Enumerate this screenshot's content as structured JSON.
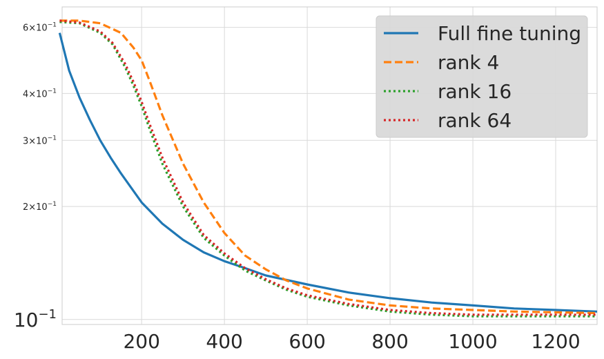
{
  "chart_data": {
    "type": "line",
    "title": "",
    "xlabel": "",
    "ylabel": "",
    "xlim": [
      8,
      1300
    ],
    "ylim": [
      0.097,
      0.68
    ],
    "yscale": "log",
    "grid": true,
    "legend_position": "top-right",
    "x_ticks": [
      200,
      400,
      600,
      800,
      1000,
      1200
    ],
    "x_tick_labels": [
      "200",
      "400",
      "600",
      "800",
      "1000",
      "1200"
    ],
    "y_ticks": [
      {
        "value": 0.6,
        "mantissa": "6×10",
        "exp": "−1",
        "size": "small"
      },
      {
        "value": 0.4,
        "mantissa": "4×10",
        "exp": "−1",
        "size": "small"
      },
      {
        "value": 0.3,
        "mantissa": "3×10",
        "exp": "−1",
        "size": "small"
      },
      {
        "value": 0.2,
        "mantissa": "2×10",
        "exp": "−1",
        "size": "small"
      },
      {
        "value": 0.1,
        "mantissa": "10",
        "exp": "−1",
        "size": "big"
      }
    ],
    "series": [
      {
        "name": "Full fine tuning",
        "color": "#1f77b4",
        "style": "solid",
        "x": [
          2,
          25,
          50,
          75,
          100,
          125,
          150,
          200,
          250,
          300,
          350,
          400,
          450,
          500,
          600,
          700,
          800,
          900,
          1000,
          1100,
          1200,
          1300
        ],
        "y": [
          0.58,
          0.46,
          0.39,
          0.34,
          0.3,
          0.27,
          0.245,
          0.205,
          0.18,
          0.163,
          0.151,
          0.143,
          0.137,
          0.131,
          0.124,
          0.118,
          0.114,
          0.111,
          0.109,
          0.107,
          0.106,
          0.105
        ]
      },
      {
        "name": "rank 4",
        "color": "#ff7f0e",
        "style": "dashed",
        "x": [
          2,
          50,
          100,
          150,
          180,
          200,
          220,
          250,
          300,
          350,
          400,
          450,
          500,
          550,
          600,
          700,
          800,
          900,
          1000,
          1100,
          1200,
          1300
        ],
        "y": [
          0.625,
          0.625,
          0.615,
          0.58,
          0.53,
          0.49,
          0.43,
          0.35,
          0.26,
          0.205,
          0.17,
          0.148,
          0.136,
          0.127,
          0.121,
          0.113,
          0.109,
          0.107,
          0.106,
          0.105,
          0.1045,
          0.104
        ]
      },
      {
        "name": "rank 16",
        "color": "#2ca02c",
        "style": "dotted",
        "x": [
          2,
          50,
          100,
          130,
          160,
          180,
          200,
          220,
          250,
          300,
          350,
          400,
          450,
          500,
          550,
          600,
          700,
          800,
          900,
          1000,
          1100,
          1200,
          1300
        ],
        "y": [
          0.62,
          0.615,
          0.58,
          0.54,
          0.47,
          0.42,
          0.37,
          0.32,
          0.26,
          0.2,
          0.165,
          0.148,
          0.135,
          0.127,
          0.12,
          0.115,
          0.109,
          0.105,
          0.103,
          0.102,
          0.102,
          0.102,
          0.102
        ]
      },
      {
        "name": "rank 64",
        "color": "#d62728",
        "style": "dotted",
        "x": [
          2,
          50,
          100,
          130,
          160,
          180,
          200,
          220,
          250,
          300,
          350,
          400,
          450,
          500,
          550,
          600,
          700,
          800,
          900,
          1000,
          1100,
          1200,
          1300
        ],
        "y": [
          0.625,
          0.618,
          0.585,
          0.545,
          0.48,
          0.43,
          0.38,
          0.33,
          0.27,
          0.205,
          0.168,
          0.15,
          0.137,
          0.128,
          0.121,
          0.116,
          0.11,
          0.106,
          0.104,
          0.103,
          0.103,
          0.103,
          0.103
        ]
      }
    ]
  }
}
